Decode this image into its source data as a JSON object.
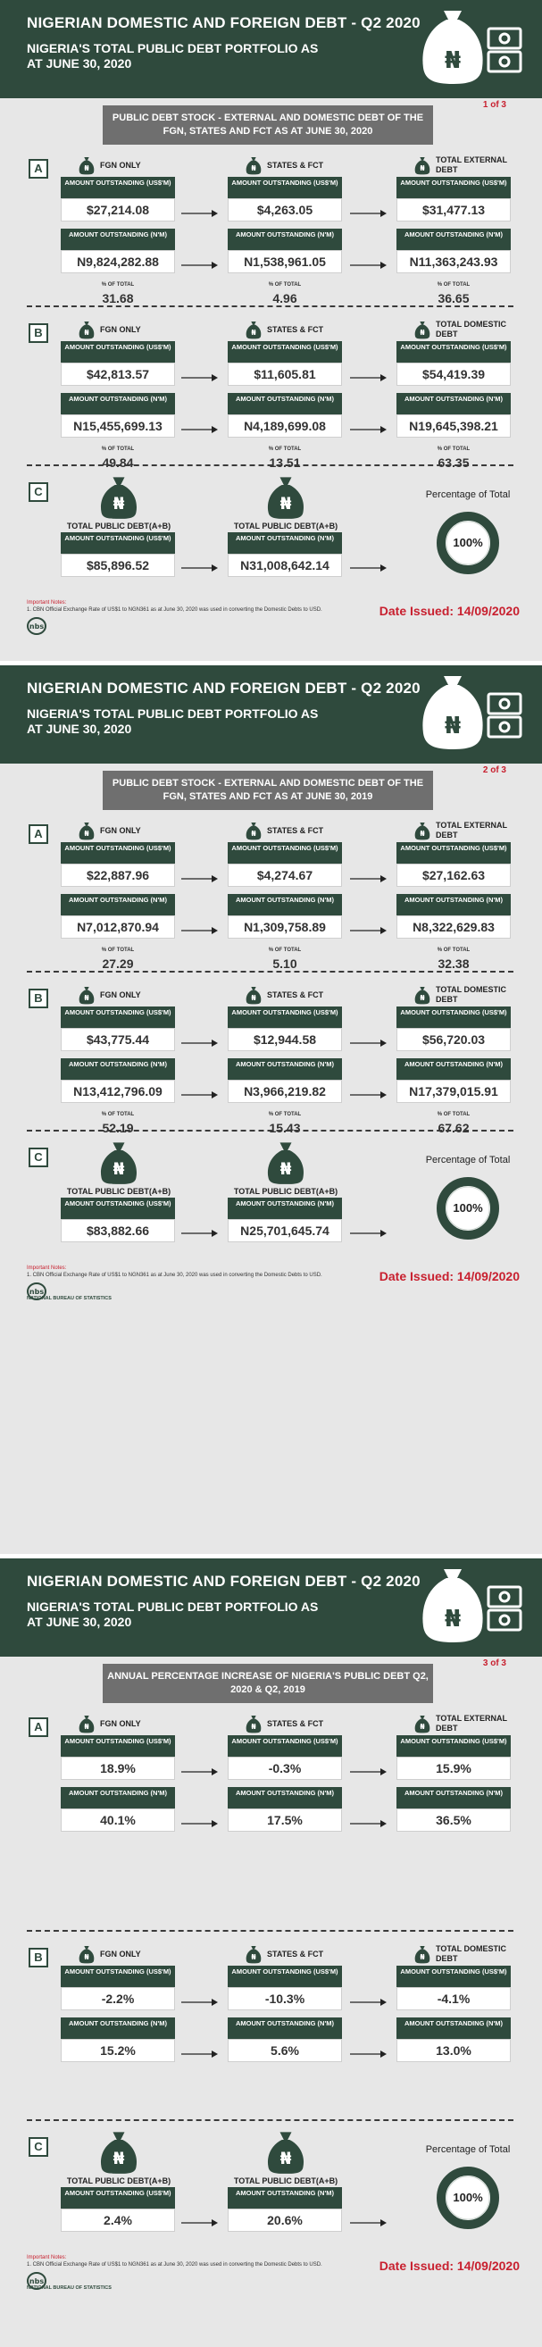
{
  "pages": [
    {
      "header_title": "NIGERIAN DOMESTIC AND FOREIGN DEBT - Q2 2020",
      "header_subtitle": "NIGERIA'S TOTAL PUBLIC DEBT PORTFOLIO AS AT JUNE 30, 2020",
      "banner": "PUBLIC DEBT STOCK - EXTERNAL AND DOMESTIC DEBT OF THE FGN, STATES AND FCT AS AT JUNE 30, 2020",
      "page_no": "1 of 3",
      "sectionA": {
        "letter": "A",
        "cols": [
          "FGN ONLY",
          "STATES & FCT",
          "TOTAL EXTERNAL DEBT"
        ],
        "hdr_usd": "AMOUNT OUTSTANDING (US$'M)",
        "hdr_ngn": "AMOUNT OUTSTANDING (N'M)",
        "usd": [
          "$27,214.08",
          "$4,263.05",
          "$31,477.13"
        ],
        "ngn": [
          "N9,824,282.88",
          "N1,538,961.05",
          "N11,363,243.93"
        ],
        "pct_label": "% OF TOTAL",
        "pct": [
          "31.68",
          "4.96",
          "36.65"
        ]
      },
      "sectionB": {
        "letter": "B",
        "cols": [
          "FGN ONLY",
          "STATES & FCT",
          "TOTAL DOMESTIC DEBT"
        ],
        "hdr_usd": "AMOUNT OUTSTANDING (US$'M)",
        "hdr_ngn": "AMOUNT OUTSTANDING (N'M)",
        "usd": [
          "$42,813.57",
          "$11,605.81",
          "$54,419.39"
        ],
        "ngn": [
          "N15,455,699.13",
          "N4,189,699.08",
          "N19,645,398.21"
        ],
        "pct_label": "% OF TOTAL",
        "pct": [
          "49.84",
          "13.51",
          "63.35"
        ]
      },
      "sectionC": {
        "letter": "C",
        "cols": [
          "TOTAL PUBLIC DEBT(A+B)",
          "TOTAL PUBLIC DEBT(A+B)"
        ],
        "hdrs": [
          "AMOUNT OUTSTANDING (US$'M)",
          "AMOUNT OUTSTANDING (N'M)"
        ],
        "vals": [
          "$85,896.52",
          "N31,008,642.14"
        ],
        "ring_label": "Percentage of Total",
        "ring_value": "100%"
      },
      "notes_title": "Important Notes:",
      "notes_text": "1.     CBN Official Exchange Rate of US$1 to NGN361 as at June 30, 2020 was used in converting the Domestic Debts to USD.",
      "date_issued": "Date Issued: 14/09/2020",
      "nbs_text": ""
    },
    {
      "header_title": "NIGERIAN DOMESTIC AND FOREIGN DEBT - Q2 2020",
      "header_subtitle": "NIGERIA'S TOTAL PUBLIC DEBT PORTFOLIO AS AT JUNE 30, 2020",
      "banner": "PUBLIC DEBT STOCK - EXTERNAL AND DOMESTIC DEBT OF THE FGN, STATES AND FCT AS AT JUNE 30, 2019",
      "page_no": "2 of 3",
      "sectionA": {
        "letter": "A",
        "cols": [
          "FGN ONLY",
          "STATES & FCT",
          "TOTAL EXTERNAL DEBT"
        ],
        "hdr_usd": "AMOUNT OUTSTANDING (US$'M)",
        "hdr_ngn": "AMOUNT OUTSTANDING (N'M)",
        "usd": [
          "$22,887.96",
          "$4,274.67",
          "$27,162.63"
        ],
        "ngn": [
          "N7,012,870.94",
          "N1,309,758.89",
          "N8,322,629.83"
        ],
        "pct_label": "% OF TOTAL",
        "pct": [
          "27.29",
          "5.10",
          "32.38"
        ]
      },
      "sectionB": {
        "letter": "B",
        "cols": [
          "FGN ONLY",
          "STATES & FCT",
          "TOTAL DOMESTIC DEBT"
        ],
        "hdr_usd": "AMOUNT OUTSTANDING (US$'M)",
        "hdr_ngn": "AMOUNT OUTSTANDING (N'M)",
        "usd": [
          "$43,775.44",
          "$12,944.58",
          "$56,720.03"
        ],
        "ngn": [
          "N13,412,796.09",
          "N3,966,219.82",
          "N17,379,015.91"
        ],
        "pct_label": "% OF TOTAL",
        "pct": [
          "52.19",
          "15.43",
          "67.62"
        ]
      },
      "sectionC": {
        "letter": "C",
        "cols": [
          "TOTAL PUBLIC DEBT(A+B)",
          "TOTAL PUBLIC DEBT(A+B)"
        ],
        "hdrs": [
          "AMOUNT OUTSTANDING (US$'M)",
          "AMOUNT OUTSTANDING (N'M)"
        ],
        "vals": [
          "$83,882.66",
          "N25,701,645.74"
        ],
        "ring_label": "Percentage of Total",
        "ring_value": "100%"
      },
      "notes_title": "Important Notes:",
      "notes_text": "1.     CBN Official Exchange Rate of US$1 to NGN361 as at June 30, 2020 was used in converting the Domestic Debts to USD.",
      "date_issued": "Date Issued: 14/09/2020",
      "nbs_text": "NATIONAL BUREAU OF STATISTICS"
    },
    {
      "header_title": "NIGERIAN DOMESTIC AND FOREIGN DEBT - Q2 2020",
      "header_subtitle": "NIGERIA'S TOTAL PUBLIC DEBT PORTFOLIO AS AT JUNE 30, 2020",
      "banner": "ANNUAL PERCENTAGE INCREASE OF NIGERIA'S PUBLIC DEBT Q2, 2020 & Q2, 2019",
      "page_no": "3 of 3",
      "sectionA": {
        "letter": "A",
        "cols": [
          "FGN ONLY",
          "STATES & FCT",
          "TOTAL EXTERNAL DEBT"
        ],
        "hdr_usd": "AMOUNT OUTSTANDING (US$'M)",
        "hdr_ngn": "AMOUNT OUTSTANDING (N'M)",
        "usd": [
          "18.9%",
          "-0.3%",
          "15.9%"
        ],
        "ngn": [
          "40.1%",
          "17.5%",
          "36.5%"
        ]
      },
      "sectionB": {
        "letter": "B",
        "cols": [
          "FGN ONLY",
          "STATES & FCT",
          "TOTAL DOMESTIC DEBT"
        ],
        "hdr_usd": "AMOUNT OUTSTANDING (US$'M)",
        "hdr_ngn": "AMOUNT OUTSTANDING (N'M)",
        "usd": [
          "-2.2%",
          "-10.3%",
          "-4.1%"
        ],
        "ngn": [
          "15.2%",
          "5.6%",
          "13.0%"
        ]
      },
      "sectionC": {
        "letter": "C",
        "cols": [
          "TOTAL PUBLIC DEBT(A+B)",
          "TOTAL PUBLIC DEBT(A+B)"
        ],
        "hdrs": [
          "AMOUNT OUTSTANDING (US$'M)",
          "AMOUNT OUTSTANDING (N'M)"
        ],
        "vals": [
          "2.4%",
          "20.6%"
        ],
        "ring_label": "Percentage of Total",
        "ring_value": "100%"
      },
      "notes_title": "Important Notes:",
      "notes_text": "1.     CBN Official Exchange Rate of US$1 to NGN361 as at June 30, 2020 was used in converting the Domestic Debts to USD.",
      "date_issued": "Date Issued: 14/09/2020",
      "nbs_text": "NATIONAL BUREAU OF STATISTICS"
    }
  ],
  "colors": {
    "header": "#2f4a3d",
    "panel": "#e7e7e7",
    "banner": "#6f6f6f",
    "accent_red": "#c8202f"
  },
  "icons": [
    "money-bag-icon",
    "cash-stack-icon",
    "arrow-right-icon",
    "nbs-logo-icon"
  ]
}
